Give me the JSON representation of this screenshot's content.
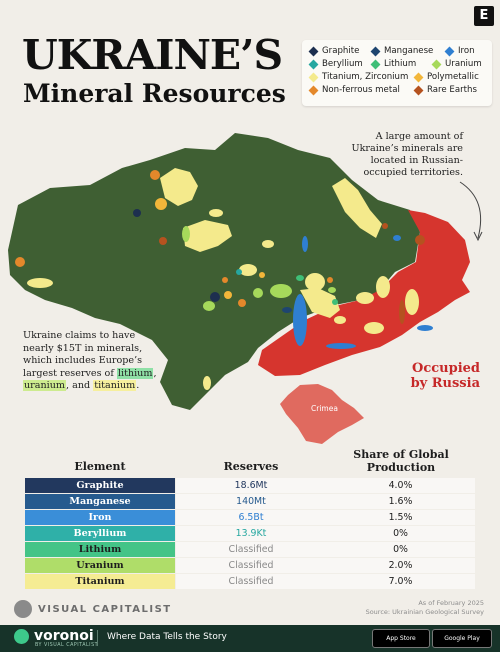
{
  "header": {
    "title_line1": "UKRAINE’S",
    "title_line2": "Mineral Resources",
    "badge": "E"
  },
  "legend": {
    "items": [
      {
        "label": "Graphite",
        "color": "#1d2f4f"
      },
      {
        "label": "Manganese",
        "color": "#1e4570"
      },
      {
        "label": "Iron",
        "color": "#2f7fd1"
      },
      {
        "label": "Beryllium",
        "color": "#26a7a0"
      },
      {
        "label": "Lithium",
        "color": "#3fbf77"
      },
      {
        "label": "Uranium",
        "color": "#a6d95b"
      },
      {
        "label": "Titanium, Zirconium",
        "color": "#f4ea8c"
      },
      {
        "label": "Polymetallic",
        "color": "#f2b63a"
      },
      {
        "label": "Non-ferrous metal",
        "color": "#e4882b"
      },
      {
        "label": "Rare Earths",
        "color": "#b5521f"
      }
    ]
  },
  "map": {
    "note_right": "A large amount of Ukraine’s minerals are located in Russian-occupied territories.",
    "note_left": {
      "intro": "Ukraine claims to have nearly $15T in minerals, which includes Europe’s largest reserves of",
      "lithium": "lithium",
      "sep1": ",",
      "uranium": "uranium",
      "sep2": ", and",
      "titanium": "titanium",
      "end": "."
    },
    "occupied_label_line1": "Occupied",
    "occupied_label_line2": "by Russia",
    "crimea_label": "Crimea",
    "colors": {
      "land": "#3f5f33",
      "occupied": "#d6352e",
      "crimea": "#e06a5f"
    }
  },
  "table": {
    "headers": {
      "element": "Element",
      "reserves": "Reserves",
      "share_line1": "Share of Global",
      "share_line2": "Production"
    },
    "rows": [
      {
        "element": "Graphite",
        "reserves": "18.6Mt",
        "share": "4.0%",
        "color": "#22385e",
        "text_color": "#ffffff",
        "reserve_color": "#22385e"
      },
      {
        "element": "Manganese",
        "reserves": "140Mt",
        "share": "1.6%",
        "color": "#265a8e",
        "text_color": "#ffffff",
        "reserve_color": "#265a8e"
      },
      {
        "element": "Iron",
        "reserves": "6.5Bt",
        "share": "1.5%",
        "color": "#3a8ed8",
        "text_color": "#ffffff",
        "reserve_color": "#2f7fd1"
      },
      {
        "element": "Beryllium",
        "reserves": "13.9Kt",
        "share": "0%",
        "color": "#2fb0a8",
        "text_color": "#ffffff",
        "reserve_color": "#26a7a0"
      },
      {
        "element": "Lithium",
        "reserves": "Classified",
        "share": "0%",
        "color": "#44c487",
        "text_color": "#1d1d1d",
        "reserve_color": "#8a8a8a"
      },
      {
        "element": "Uranium",
        "reserves": "Classified",
        "share": "2.0%",
        "color": "#afdd69",
        "text_color": "#1d1d1d",
        "reserve_color": "#8a8a8a"
      },
      {
        "element": "Titanium",
        "reserves": "Classified",
        "share": "7.0%",
        "color": "#f5ec93",
        "text_color": "#1d1d1d",
        "reserve_color": "#8a8a8a"
      }
    ]
  },
  "footer": {
    "publisher": "VISUAL CAPITALIST",
    "source_line1": "As of February 2025",
    "source_line2": "Source: Ukrainian Geological Survey",
    "brand": "voronoi",
    "brand_sub": "BY VISUAL CAPITALIST",
    "tagline": "Where Data Tells the Story",
    "store1": "App Store",
    "store2": "Google Play"
  }
}
